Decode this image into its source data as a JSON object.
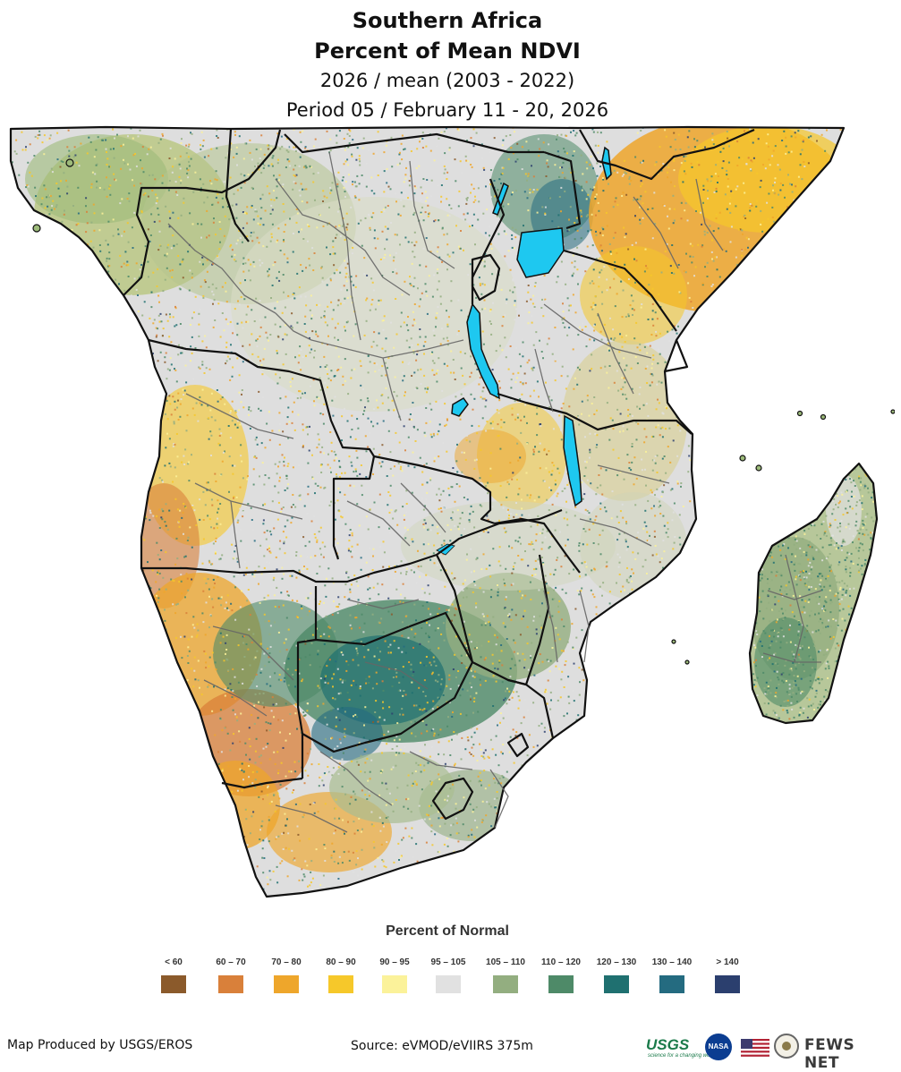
{
  "header": {
    "title_line1": "Southern Africa",
    "title_line2": "Percent of Mean NDVI",
    "subtitle_line1": "2026 / mean (2003 - 2022)",
    "subtitle_line2": "Period 05 / February 11 - 20, 2026"
  },
  "legend": {
    "title": "Percent of Normal",
    "items": [
      {
        "label": "< 60",
        "color": "#8b5a2b"
      },
      {
        "label": "60 – 70",
        "color": "#d9803a"
      },
      {
        "label": "70 – 80",
        "color": "#eea62b"
      },
      {
        "label": "80 – 90",
        "color": "#f6c82a"
      },
      {
        "label": "90 – 95",
        "color": "#fbf29a"
      },
      {
        "label": "95 – 105",
        "color": "#e1e1e1"
      },
      {
        "label": "105 – 110",
        "color": "#93ae80"
      },
      {
        "label": "110 – 120",
        "color": "#4e8a68"
      },
      {
        "label": "120 – 130",
        "color": "#1f7070"
      },
      {
        "label": "130 – 140",
        "color": "#246b80"
      },
      {
        "label": "> 140",
        "color": "#2b3f6e"
      }
    ]
  },
  "map": {
    "water_color": "#1ec8f0",
    "border_color": "#111111",
    "admin_border_color": "#666666"
  },
  "footer": {
    "produced_by": "Map Produced by USGS/EROS",
    "source": "Source: eVMOD/eVIIRS 375m"
  },
  "logos": {
    "usgs": "USGS",
    "usgs_tagline": "science for a changing world",
    "nasa": "NASA",
    "fews": "FEWS NET"
  }
}
